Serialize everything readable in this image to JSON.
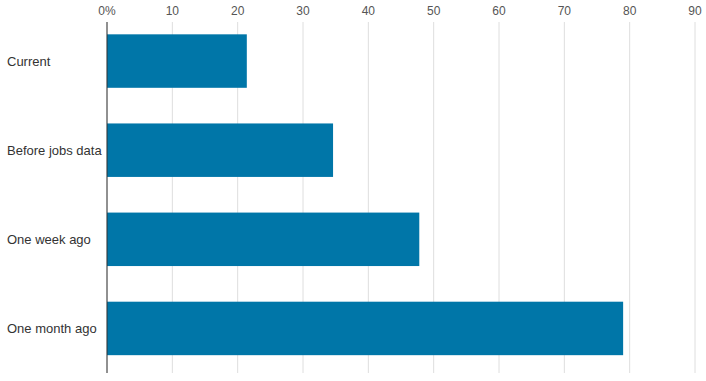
{
  "chart_data": {
    "type": "bar",
    "orientation": "horizontal",
    "categories": [
      "Current",
      "Before jobs data",
      "One week ago",
      "One month ago"
    ],
    "values": [
      21.4,
      34.6,
      47.8,
      79.0
    ],
    "color": "#0076a8",
    "xlim": [
      0,
      90
    ],
    "xticks": [
      {
        "value": 0,
        "label": "0%"
      },
      10,
      20,
      30,
      40,
      50,
      60,
      70,
      80,
      90
    ],
    "grid": true
  }
}
